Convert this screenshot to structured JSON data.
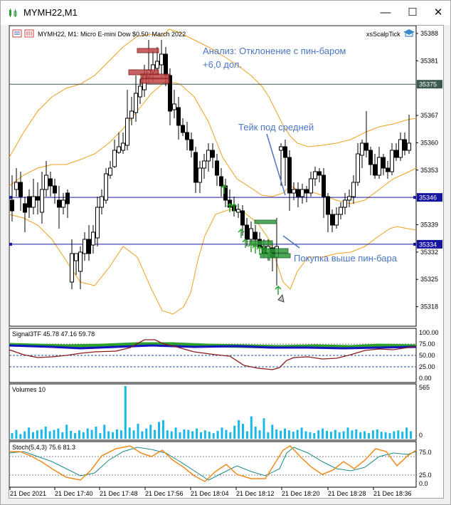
{
  "window": {
    "title": "MYMH22,M1",
    "minimize_glyph": "—",
    "maximize_glyph": "☐",
    "close_glyph": "✕"
  },
  "main_chart": {
    "header": "MYMH22, M1:  Micro E-mini Dow $0.50: March 2022",
    "indicator_name": "xsScalpTick",
    "annotation_analysis_line1": "Анализ: Отклонение с пин-баром",
    "annotation_analysis_line2": "+6,0 дол.",
    "annotation_take": "Тейк под средней",
    "annotation_buy": "Покупка выше пин-бара",
    "price_labels": [
      "35388",
      "35381",
      "35367",
      "35360",
      "35353",
      "35339",
      "35332",
      "35325",
      "35318"
    ],
    "highlight_labels": [
      "35375",
      "35346",
      "35334"
    ],
    "colors": {
      "highlight_bg": "#1414a0",
      "annotation": "#4a76c2",
      "band": "#f0a020",
      "arrow": "#2ca02c"
    }
  },
  "signal_panel": {
    "header": "Signal3TF 45.78 47.16 59.78",
    "levels": [
      "100.00",
      "75.00",
      "50.00",
      "25.00",
      "0.00"
    ]
  },
  "volume_panel": {
    "header": "Volumes 10",
    "levels": [
      "565",
      "0"
    ]
  },
  "stoch_panel": {
    "header": "Stoch(5,4,3) 75.6 81.3",
    "levels": [
      "75.0",
      "25.0",
      "0.0"
    ]
  },
  "time_axis": [
    "21 Dec 2021",
    "21 Dec 17:40",
    "21 Dec 17:48",
    "21 Dec 17:56",
    "21 Dec 18:04",
    "21 Dec 18:12",
    "21 Dec 18:20",
    "21 Dec 18:28",
    "21 Dec 18:36"
  ],
  "chart_data": {
    "type": "candlestick",
    "symbol": "MYMH22",
    "timeframe": "M1",
    "y_range": [
      35313,
      35390
    ],
    "horizontal_levels": [
      35375,
      35346,
      35334
    ],
    "volume_range": [
      0,
      565
    ],
    "stoch_levels": [
      75,
      25
    ],
    "signal_levels": [
      75,
      50,
      25
    ]
  }
}
